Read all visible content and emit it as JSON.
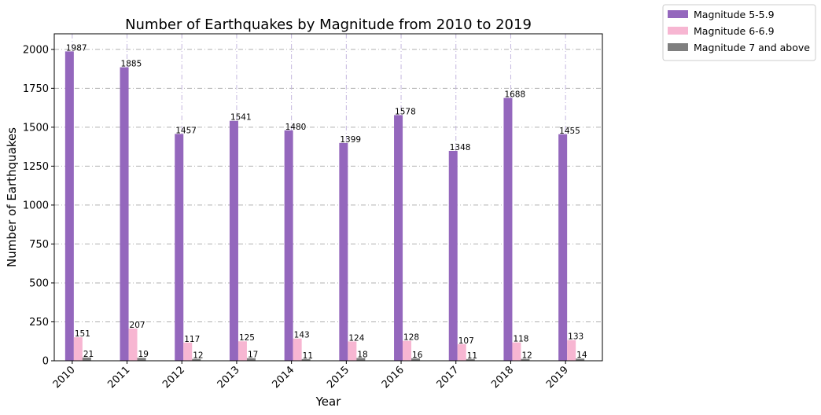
{
  "chart_data": {
    "type": "bar",
    "title": "Number of Earthquakes by Magnitude from 2010 to 2019",
    "xlabel": "Year",
    "ylabel": "Number of Earthquakes",
    "ylim": [
      0,
      2100
    ],
    "yticks": [
      0,
      250,
      500,
      750,
      1000,
      1250,
      1500,
      1750,
      2000
    ],
    "grid": true,
    "legend_position": "outside-top-right",
    "categories": [
      "2010",
      "2011",
      "2012",
      "2013",
      "2014",
      "2015",
      "2016",
      "2017",
      "2018",
      "2019"
    ],
    "series": [
      {
        "name": "Magnitude 5-5.9",
        "color": "#9467bd",
        "values": [
          1987,
          1885,
          1457,
          1541,
          1480,
          1399,
          1578,
          1348,
          1688,
          1455
        ]
      },
      {
        "name": "Magnitude 6-6.9",
        "color": "#f7b6d2",
        "values": [
          151,
          207,
          117,
          125,
          143,
          124,
          128,
          107,
          118,
          133
        ]
      },
      {
        "name": "Magnitude 7 and above",
        "color": "#7f7f7f",
        "values": [
          21,
          19,
          12,
          17,
          11,
          18,
          16,
          11,
          12,
          14
        ]
      }
    ]
  }
}
